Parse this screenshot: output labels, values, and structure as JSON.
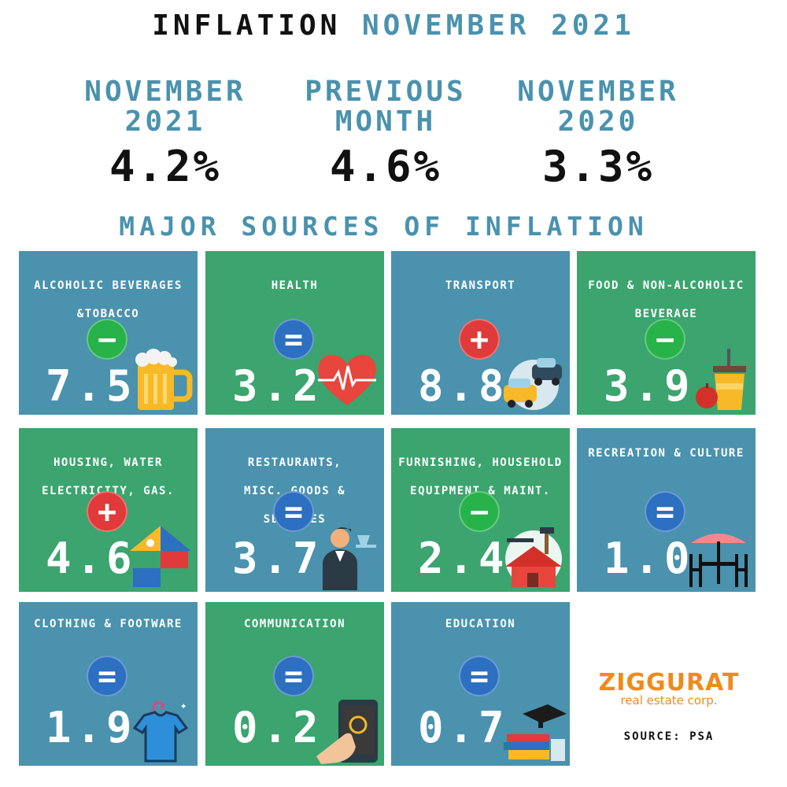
{
  "title": {
    "part1": "INFLATION",
    "part2": "NOVEMBER 2021"
  },
  "stats": [
    {
      "label_line1": "NOVEMBER",
      "label_line2": "2021",
      "value": "4.2%"
    },
    {
      "label_line1": "PREVIOUS",
      "label_line2": "MONTH",
      "value": "4.6%"
    },
    {
      "label_line1": "NOVEMBER",
      "label_line2": "2020",
      "value": "3.3%"
    }
  ],
  "subtitle": "MAJOR SOURCES OF INFLATION",
  "colors": {
    "blue": "#4a92ae",
    "green": "#3ba46f",
    "minus": "#27b24a",
    "plus": "#e03a3a",
    "equal": "#2d6fc0",
    "brand": "#f08a1c"
  },
  "sources": [
    {
      "name_line1": "ALCOHOLIC BEVERAGES",
      "name_line2": "&TOBACCO",
      "sign": "−",
      "sign_type": "minus",
      "value": "7.5",
      "icon": "beer-mug-icon"
    },
    {
      "name_line1": "HEALTH",
      "name_line2": "",
      "sign": "=",
      "sign_type": "equal",
      "value": "3.2",
      "icon": "heartbeat-icon"
    },
    {
      "name_line1": "TRANSPORT",
      "name_line2": "",
      "sign": "+",
      "sign_type": "plus",
      "value": "8.8",
      "icon": "cars-icon"
    },
    {
      "name_line1": "FOOD & NON-ALCOHOLIC",
      "name_line2": "BEVERAGE",
      "sign": "−",
      "sign_type": "minus",
      "value": "3.9",
      "icon": "drink-apple-icon"
    },
    {
      "name_line1": "HOUSING, WATER",
      "name_line2": "ELECTRICITY, GAS.",
      "sign": "+",
      "sign_type": "plus",
      "value": "4.6",
      "icon": "house-utilities-icon"
    },
    {
      "name_line1": "RESTAURANTS,",
      "name_line2": "MISC. GOODS & SERVICES",
      "sign": "=",
      "sign_type": "equal",
      "value": "3.7",
      "icon": "waiter-icon"
    },
    {
      "name_line1": "FURNISHING, HOUSEHOLD",
      "name_line2": "EQUIPMENT  & MAINT.",
      "sign": "−",
      "sign_type": "minus",
      "value": "2.4",
      "icon": "house-tools-icon"
    },
    {
      "name_line1": "RECREATION & CULTURE",
      "name_line2": "",
      "sign": "=",
      "sign_type": "equal",
      "value": "1.0",
      "icon": "cafe-table-icon"
    },
    {
      "name_line1": "CLOTHING & FOOTWARE",
      "name_line2": "",
      "sign": "=",
      "sign_type": "equal",
      "value": "1.9",
      "icon": "shirt-icon"
    },
    {
      "name_line1": "COMMUNICATION",
      "name_line2": "",
      "sign": "=",
      "sign_type": "equal",
      "value": "0.2",
      "icon": "smartphone-icon"
    },
    {
      "name_line1": "EDUCATION",
      "name_line2": "",
      "sign": "=",
      "sign_type": "equal",
      "value": "0.7",
      "icon": "books-cap-icon"
    }
  ],
  "logo": {
    "brand": "ZIGGURAT",
    "tagline": "real estate corp."
  },
  "source": "SOURCE: PSA"
}
